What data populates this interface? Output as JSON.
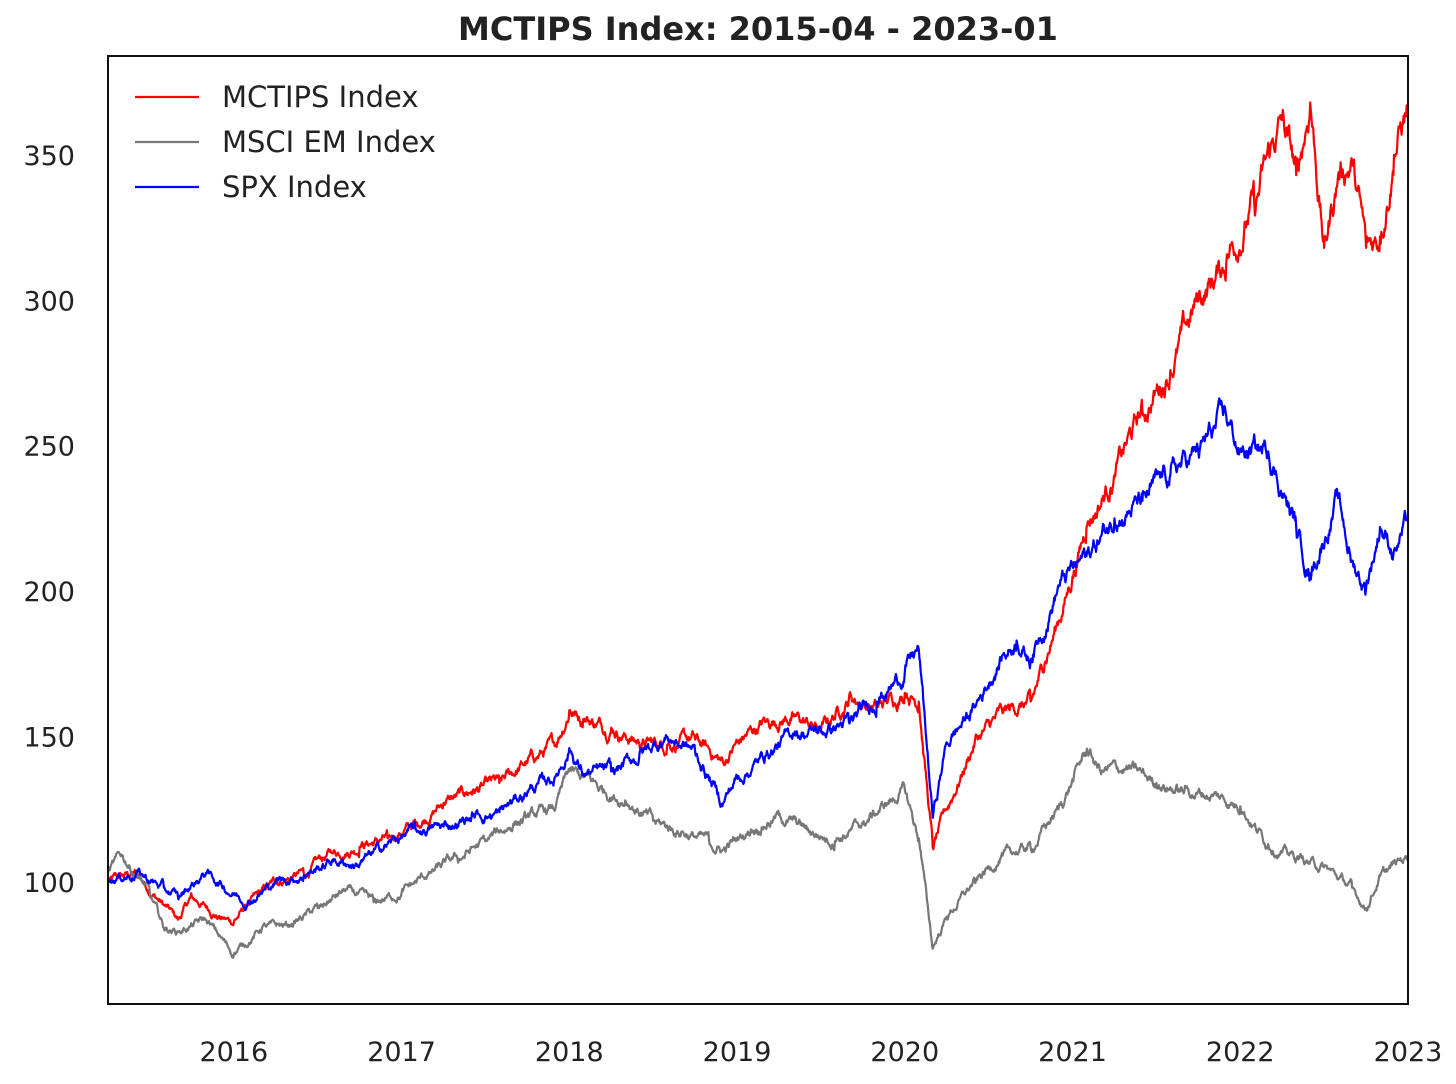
{
  "chart_data": {
    "type": "line",
    "title": "MCTIPS Index: 2015-04 - 2023-01",
    "xlabel": "",
    "ylabel": "",
    "x_range": [
      "2015-04",
      "2023-01"
    ],
    "ylim": [
      58,
      384
    ],
    "grid": false,
    "legend_position": "top-left",
    "x_ticks": [
      {
        "label": "2016",
        "date": "2016-01"
      },
      {
        "label": "2017",
        "date": "2017-01"
      },
      {
        "label": "2018",
        "date": "2018-01"
      },
      {
        "label": "2019",
        "date": "2019-01"
      },
      {
        "label": "2020",
        "date": "2020-01"
      },
      {
        "label": "2021",
        "date": "2021-01"
      },
      {
        "label": "2022",
        "date": "2022-01"
      },
      {
        "label": "2023",
        "date": "2023-01"
      }
    ],
    "y_ticks": [
      100,
      150,
      200,
      250,
      300,
      350
    ],
    "series": [
      {
        "name": "MCTIPS Index",
        "color": "#ff0000",
        "points": [
          [
            "2015-04",
            100
          ],
          [
            "2015-06",
            103
          ],
          [
            "2015-08",
            92
          ],
          [
            "2015-09",
            87
          ],
          [
            "2015-10",
            95
          ],
          [
            "2015-12",
            88
          ],
          [
            "2016-01",
            86
          ],
          [
            "2016-02",
            92
          ],
          [
            "2016-04",
            100
          ],
          [
            "2016-06",
            103
          ],
          [
            "2016-08",
            110
          ],
          [
            "2016-10",
            112
          ],
          [
            "2016-12",
            115
          ],
          [
            "2017-02",
            120
          ],
          [
            "2017-04",
            127
          ],
          [
            "2017-06",
            131
          ],
          [
            "2017-08",
            134
          ],
          [
            "2017-10",
            141
          ],
          [
            "2017-12",
            147
          ],
          [
            "2018-01",
            159
          ],
          [
            "2018-02",
            156
          ],
          [
            "2018-04",
            153
          ],
          [
            "2018-06",
            148
          ],
          [
            "2018-08",
            147
          ],
          [
            "2018-10",
            149
          ],
          [
            "2018-12",
            141
          ],
          [
            "2019-01",
            148
          ],
          [
            "2019-03",
            155
          ],
          [
            "2019-05",
            157
          ],
          [
            "2019-07",
            152
          ],
          [
            "2019-09",
            163
          ],
          [
            "2019-11",
            160
          ],
          [
            "2020-01",
            165
          ],
          [
            "2020-02",
            162
          ],
          [
            "2020-03",
            112
          ],
          [
            "2020-04",
            125
          ],
          [
            "2020-06",
            148
          ],
          [
            "2020-08",
            158
          ],
          [
            "2020-10",
            162
          ],
          [
            "2020-11",
            175
          ],
          [
            "2021-01",
            205
          ],
          [
            "2021-02",
            222
          ],
          [
            "2021-04",
            240
          ],
          [
            "2021-06",
            262
          ],
          [
            "2021-08",
            276
          ],
          [
            "2021-10",
            300
          ],
          [
            "2021-12",
            313
          ],
          [
            "2022-02",
            334
          ],
          [
            "2022-04",
            362
          ],
          [
            "2022-05",
            343
          ],
          [
            "2022-06",
            368
          ],
          [
            "2022-07",
            318
          ],
          [
            "2022-08",
            343
          ],
          [
            "2022-09",
            348
          ],
          [
            "2022-10",
            318
          ],
          [
            "2022-11",
            322
          ],
          [
            "2022-12",
            350
          ],
          [
            "2023-01",
            366
          ]
        ]
      },
      {
        "name": "MSCI EM Index",
        "color": "#777777",
        "points": [
          [
            "2015-04",
            103
          ],
          [
            "2015-05",
            109
          ],
          [
            "2015-06",
            103
          ],
          [
            "2015-07",
            96
          ],
          [
            "2015-08",
            84
          ],
          [
            "2015-09",
            83
          ],
          [
            "2015-11",
            87
          ],
          [
            "2016-01",
            75
          ],
          [
            "2016-03",
            84
          ],
          [
            "2016-05",
            85
          ],
          [
            "2016-07",
            91
          ],
          [
            "2016-09",
            97
          ],
          [
            "2016-11",
            93
          ],
          [
            "2017-01",
            96
          ],
          [
            "2017-03",
            103
          ],
          [
            "2017-05",
            108
          ],
          [
            "2017-07",
            114
          ],
          [
            "2017-09",
            120
          ],
          [
            "2017-12",
            125
          ],
          [
            "2018-01",
            138
          ],
          [
            "2018-03",
            133
          ],
          [
            "2018-05",
            128
          ],
          [
            "2018-07",
            121
          ],
          [
            "2018-09",
            117
          ],
          [
            "2018-11",
            114
          ],
          [
            "2018-12",
            111
          ],
          [
            "2019-02",
            118
          ],
          [
            "2019-04",
            123
          ],
          [
            "2019-06",
            118
          ],
          [
            "2019-08",
            114
          ],
          [
            "2019-10",
            120
          ],
          [
            "2019-12",
            128
          ],
          [
            "2020-01",
            132
          ],
          [
            "2020-02",
            115
          ],
          [
            "2020-03",
            77
          ],
          [
            "2020-04",
            88
          ],
          [
            "2020-06",
            100
          ],
          [
            "2020-08",
            109
          ],
          [
            "2020-10",
            112
          ],
          [
            "2020-12",
            125
          ],
          [
            "2021-02",
            145
          ],
          [
            "2021-03",
            138
          ],
          [
            "2021-05",
            139
          ],
          [
            "2021-07",
            134
          ],
          [
            "2021-09",
            131
          ],
          [
            "2021-11",
            130
          ],
          [
            "2022-01",
            126
          ],
          [
            "2022-03",
            113
          ],
          [
            "2022-05",
            108
          ],
          [
            "2022-07",
            105
          ],
          [
            "2022-09",
            98
          ],
          [
            "2022-10",
            91
          ],
          [
            "2022-11",
            102
          ],
          [
            "2023-01",
            109
          ]
        ]
      },
      {
        "name": "SPX Index",
        "color": "#0000ff",
        "points": [
          [
            "2015-04",
            101
          ],
          [
            "2015-06",
            103
          ],
          [
            "2015-08",
            98
          ],
          [
            "2015-09",
            95
          ],
          [
            "2015-11",
            103
          ],
          [
            "2016-01",
            96
          ],
          [
            "2016-02",
            93
          ],
          [
            "2016-04",
            100
          ],
          [
            "2016-06",
            102
          ],
          [
            "2016-08",
            107
          ],
          [
            "2016-10",
            106
          ],
          [
            "2016-12",
            113
          ],
          [
            "2017-02",
            118
          ],
          [
            "2017-04",
            119
          ],
          [
            "2017-06",
            122
          ],
          [
            "2017-08",
            124
          ],
          [
            "2017-10",
            131
          ],
          [
            "2017-12",
            136
          ],
          [
            "2018-01",
            146
          ],
          [
            "2018-02",
            137
          ],
          [
            "2018-04",
            138
          ],
          [
            "2018-06",
            143
          ],
          [
            "2018-08",
            150
          ],
          [
            "2018-10",
            145
          ],
          [
            "2018-12",
            127
          ],
          [
            "2019-01",
            136
          ],
          [
            "2019-03",
            143
          ],
          [
            "2019-05",
            151
          ],
          [
            "2019-07",
            152
          ],
          [
            "2019-09",
            155
          ],
          [
            "2019-11",
            162
          ],
          [
            "2020-01",
            172
          ],
          [
            "2020-02",
            180
          ],
          [
            "2020-03",
            122
          ],
          [
            "2020-04",
            148
          ],
          [
            "2020-06",
            160
          ],
          [
            "2020-08",
            178
          ],
          [
            "2020-09",
            183
          ],
          [
            "2020-10",
            176
          ],
          [
            "2020-12",
            202
          ],
          [
            "2021-02",
            212
          ],
          [
            "2021-04",
            225
          ],
          [
            "2021-06",
            231
          ],
          [
            "2021-08",
            240
          ],
          [
            "2021-10",
            248
          ],
          [
            "2021-12",
            260
          ],
          [
            "2022-01",
            248
          ],
          [
            "2022-03",
            248
          ],
          [
            "2022-05",
            222
          ],
          [
            "2022-06",
            206
          ],
          [
            "2022-08",
            232
          ],
          [
            "2022-09",
            210
          ],
          [
            "2022-10",
            201
          ],
          [
            "2022-11",
            222
          ],
          [
            "2022-12",
            214
          ],
          [
            "2023-01",
            224
          ]
        ]
      }
    ]
  }
}
